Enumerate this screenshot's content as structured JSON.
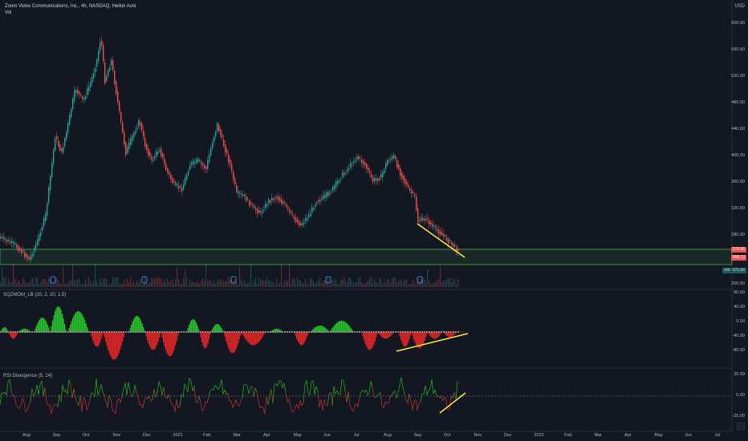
{
  "header": {
    "title": "Zoom Video Communications, Inc., 4h, NASDAQ, Heikin Ashi",
    "subtitle": "Vol",
    "currency": "USD"
  },
  "price_axis": [
    "600.00",
    "560.00",
    "520.00",
    "480.00",
    "440.00",
    "400.00",
    "360.00",
    "320.00",
    "280.00"
  ],
  "price_tags": {
    "last": "279.56",
    "prev": "268.73",
    "vol_label": "Vol",
    "vol_value": "271.00",
    "volume_axis": "200.00"
  },
  "osc1": {
    "title": "SQZMOM_LB (20, 2, 20, 1.5)",
    "axis": [
      "80.00",
      "40.00",
      "0.00",
      "-40.00",
      "-80.00"
    ]
  },
  "osc2": {
    "title": "RSI Divergence (5, 14)",
    "axis": [
      "25.00",
      "0.00",
      "-25.00"
    ]
  },
  "time_axis": [
    "Aug",
    "Sep",
    "Oct",
    "Nov",
    "Dec",
    "2021",
    "Feb",
    "Mar",
    "Apr",
    "May",
    "Jun",
    "Jul",
    "Aug",
    "Sep",
    "Oct",
    "Nov",
    "Dec",
    "2022",
    "Feb",
    "Mar",
    "Apr",
    "May",
    "Jun",
    "Jul"
  ],
  "colors": {
    "up": "#26a69a",
    "down": "#ef5350",
    "zone": "#4caf50",
    "trend": "#ffeb3b",
    "bg": "#131722"
  }
}
